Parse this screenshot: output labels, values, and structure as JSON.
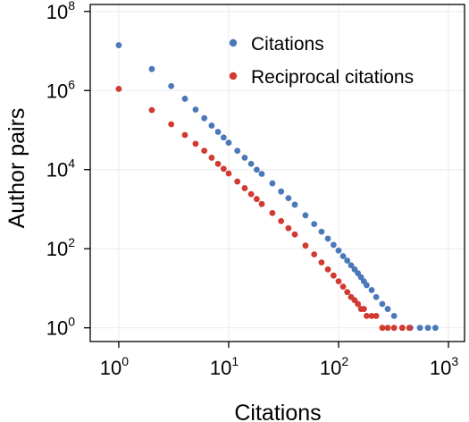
{
  "chart_data": {
    "type": "scatter",
    "title": "",
    "xlabel": "Citations",
    "ylabel": "Author pairs",
    "x_scale": "log",
    "y_scale": "log",
    "xlim": [
      0.55,
      1400
    ],
    "ylim": [
      0.45,
      150000000
    ],
    "grid": true,
    "legend_position": "top-right",
    "x_ticks": [
      {
        "base": "10",
        "exp": "0",
        "value": 1
      },
      {
        "base": "10",
        "exp": "1",
        "value": 10
      },
      {
        "base": "10",
        "exp": "2",
        "value": 100
      },
      {
        "base": "10",
        "exp": "3",
        "value": 1000
      }
    ],
    "y_ticks": [
      {
        "base": "10",
        "exp": "0",
        "value": 1
      },
      {
        "base": "10",
        "exp": "2",
        "value": 100
      },
      {
        "base": "10",
        "exp": "4",
        "value": 10000
      },
      {
        "base": "10",
        "exp": "6",
        "value": 1000000
      },
      {
        "base": "10",
        "exp": "8",
        "value": 100000000
      }
    ],
    "series": [
      {
        "name": "Citations",
        "color": "#4a78b8",
        "points": [
          [
            1,
            14000000
          ],
          [
            2,
            3500000
          ],
          [
            3,
            1300000
          ],
          [
            4,
            620000
          ],
          [
            5,
            330000
          ],
          [
            6,
            200000
          ],
          [
            7,
            130000
          ],
          [
            8,
            90000
          ],
          [
            9,
            65000
          ],
          [
            10,
            48000
          ],
          [
            12,
            30000
          ],
          [
            14,
            20000
          ],
          [
            16,
            14000
          ],
          [
            18,
            10000
          ],
          [
            20,
            7800
          ],
          [
            25,
            4500
          ],
          [
            30,
            2800
          ],
          [
            35,
            1900
          ],
          [
            40,
            1300
          ],
          [
            50,
            700
          ],
          [
            60,
            420
          ],
          [
            70,
            270
          ],
          [
            80,
            180
          ],
          [
            90,
            125
          ],
          [
            100,
            90
          ],
          [
            110,
            65
          ],
          [
            120,
            50
          ],
          [
            130,
            38
          ],
          [
            140,
            30
          ],
          [
            150,
            24
          ],
          [
            160,
            19
          ],
          [
            170,
            15
          ],
          [
            180,
            12
          ],
          [
            200,
            9
          ],
          [
            220,
            6
          ],
          [
            250,
            4
          ],
          [
            280,
            3
          ],
          [
            320,
            2
          ],
          [
            380,
            1
          ],
          [
            450,
            1
          ],
          [
            550,
            1
          ],
          [
            650,
            1
          ],
          [
            760,
            1
          ]
        ]
      },
      {
        "name": "Reciprocal citations",
        "color": "#d13a30",
        "points": [
          [
            1,
            1100000
          ],
          [
            2,
            320000
          ],
          [
            3,
            140000
          ],
          [
            4,
            75000
          ],
          [
            5,
            45000
          ],
          [
            6,
            30000
          ],
          [
            7,
            20000
          ],
          [
            8,
            14000
          ],
          [
            9,
            10500
          ],
          [
            10,
            8000
          ],
          [
            12,
            5000
          ],
          [
            14,
            3400
          ],
          [
            16,
            2400
          ],
          [
            18,
            1800
          ],
          [
            20,
            1350
          ],
          [
            25,
            800
          ],
          [
            30,
            500
          ],
          [
            35,
            330
          ],
          [
            40,
            230
          ],
          [
            50,
            120
          ],
          [
            60,
            72
          ],
          [
            70,
            45
          ],
          [
            80,
            30
          ],
          [
            90,
            21
          ],
          [
            100,
            15
          ],
          [
            110,
            11
          ],
          [
            120,
            8
          ],
          [
            130,
            6
          ],
          [
            140,
            5
          ],
          [
            150,
            4
          ],
          [
            160,
            3
          ],
          [
            170,
            3
          ],
          [
            180,
            2
          ],
          [
            200,
            2
          ],
          [
            220,
            2
          ],
          [
            250,
            1
          ],
          [
            280,
            1
          ],
          [
            320,
            1
          ],
          [
            380,
            1
          ],
          [
            440,
            1
          ]
        ]
      }
    ]
  }
}
